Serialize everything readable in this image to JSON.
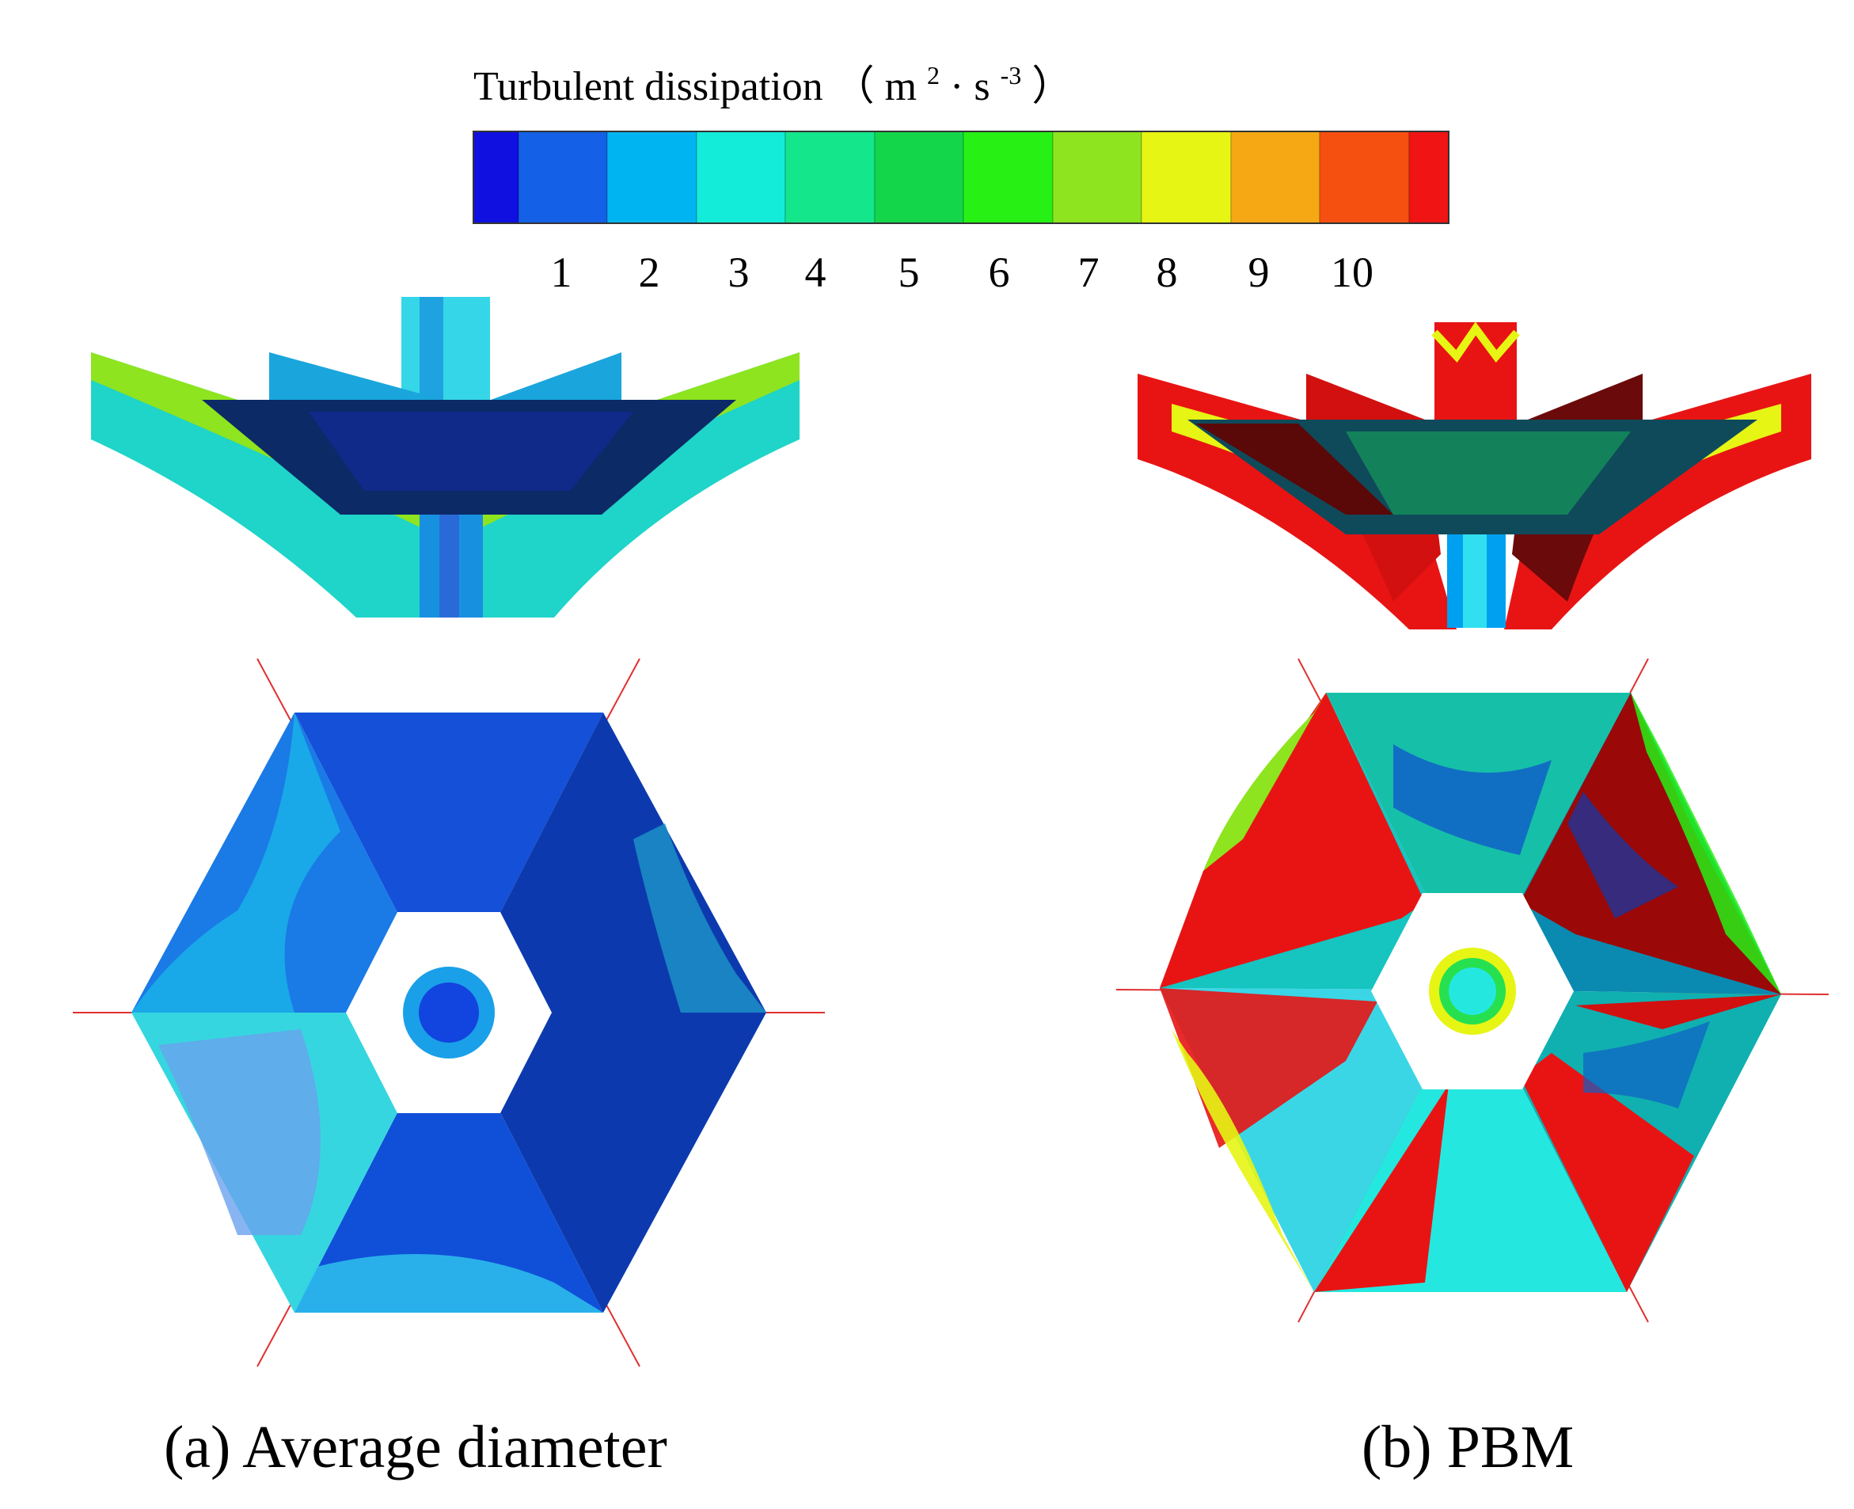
{
  "legend": {
    "title_main": "Turbulent dissipation",
    "title_open": "（",
    "title_unit_m": "m",
    "title_unit_m_exp": "2",
    "title_dot": "·",
    "title_unit_s": "s",
    "title_unit_s_exp": "-3",
    "title_close": "）",
    "ticks": [
      "1",
      "2",
      "3",
      "4",
      "5",
      "6",
      "7",
      "8",
      "9",
      "10"
    ],
    "colors": [
      "#1010e0",
      "#1460e6",
      "#00b4f2",
      "#12ecd8",
      "#14e68c",
      "#14d64a",
      "#26f014",
      "#8ee41e",
      "#e6f514",
      "#f5a814",
      "#f5500f",
      "#f01414"
    ]
  },
  "panels": [
    {
      "caption": "(a) Average diameter"
    },
    {
      "caption": "(b) PBM"
    }
  ]
}
